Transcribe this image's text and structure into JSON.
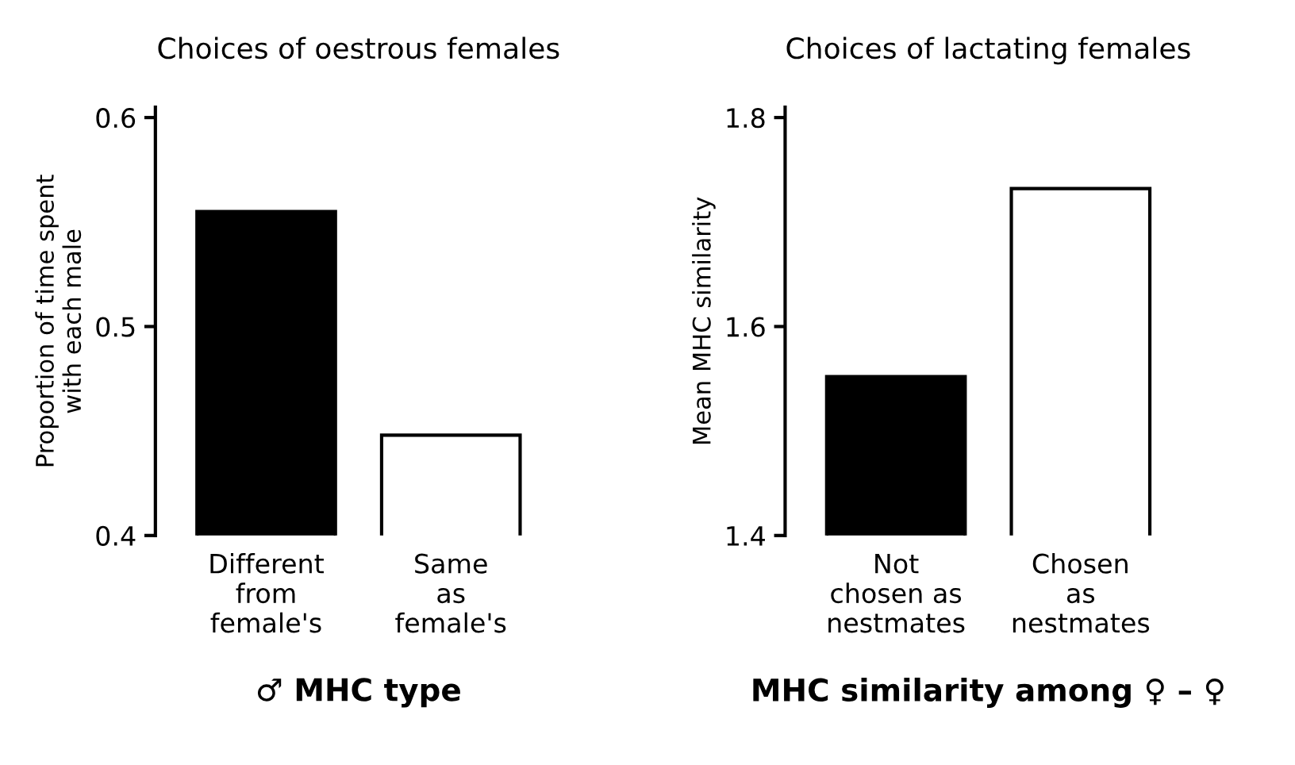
{
  "chart_data": [
    {
      "type": "bar",
      "title": "Choices of oestrous females",
      "ylabel": "Proportion of time spent\nwith each male",
      "xlabel": "♂ MHC type",
      "categories": [
        "Different\nfrom\nfemale's",
        "Same\nas\nfemale's"
      ],
      "values": [
        0.555,
        0.448
      ],
      "colors": [
        "#000000",
        "#ffffff"
      ],
      "ylim": [
        0.4,
        0.605
      ],
      "yticks": [
        0.4,
        0.5,
        0.6
      ],
      "grid": false,
      "legend": false
    },
    {
      "type": "bar",
      "title": "Choices of lactating females",
      "ylabel": "Mean MHC similarity",
      "xlabel": "MHC similarity among ♀ – ♀",
      "categories": [
        "Not\nchosen as\nnestmates",
        "Chosen\nas\nnestmates"
      ],
      "values": [
        1.552,
        1.732
      ],
      "colors": [
        "#000000",
        "#ffffff"
      ],
      "ylim": [
        1.4,
        1.81
      ],
      "yticks": [
        1.4,
        1.6,
        1.8
      ],
      "grid": false,
      "legend": false
    }
  ]
}
